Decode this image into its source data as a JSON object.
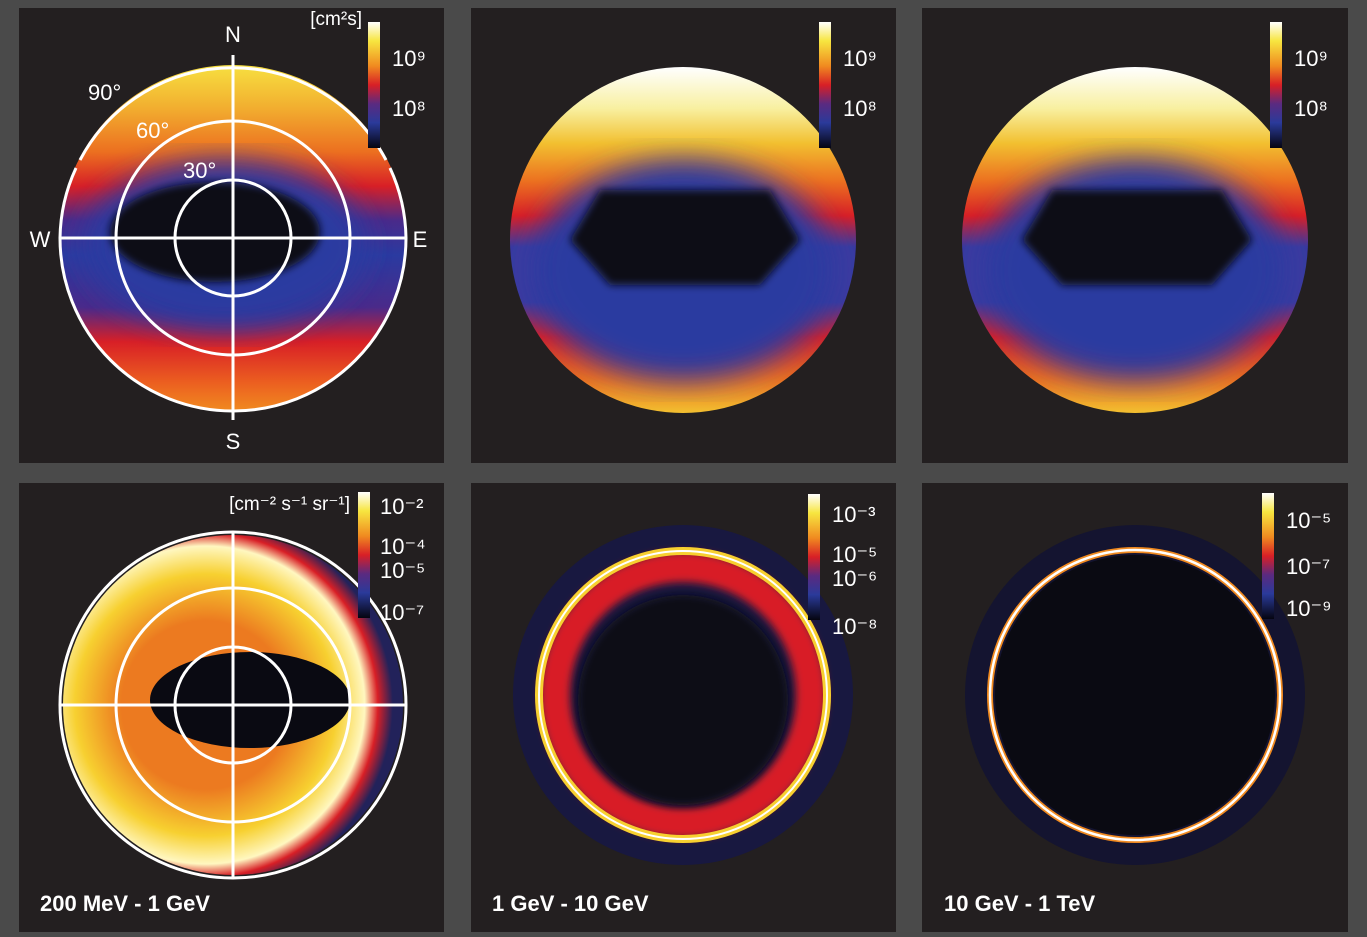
{
  "panels": [
    {
      "colorbar": {
        "unit": "[cm²s]",
        "ticks": [
          "10⁹",
          "10⁸"
        ]
      },
      "directions": {
        "north": "N",
        "south": "S",
        "west": "W",
        "east": "E"
      },
      "zenith_angles": [
        "90°",
        "60°",
        "30°"
      ]
    },
    {
      "colorbar": {
        "ticks": [
          "10⁹",
          "10⁸"
        ]
      }
    },
    {
      "colorbar": {
        "ticks": [
          "10⁹",
          "10⁸"
        ]
      }
    },
    {
      "colorbar": {
        "unit": "[cm⁻² s⁻¹ sr⁻¹]",
        "ticks": [
          "10⁻²",
          "10⁻⁴",
          "10⁻⁵",
          "10⁻⁷"
        ]
      },
      "energy_range": "200 MeV - 1 GeV"
    },
    {
      "colorbar": {
        "ticks": [
          "10⁻³",
          "10⁻⁵",
          "10⁻⁶",
          "10⁻⁸"
        ]
      },
      "energy_range": "1 GeV - 10 GeV"
    },
    {
      "colorbar": {
        "ticks": [
          "10⁻⁵",
          "10⁻⁷",
          "10⁻⁹"
        ]
      },
      "energy_range": "10 GeV - 1 TeV"
    }
  ]
}
